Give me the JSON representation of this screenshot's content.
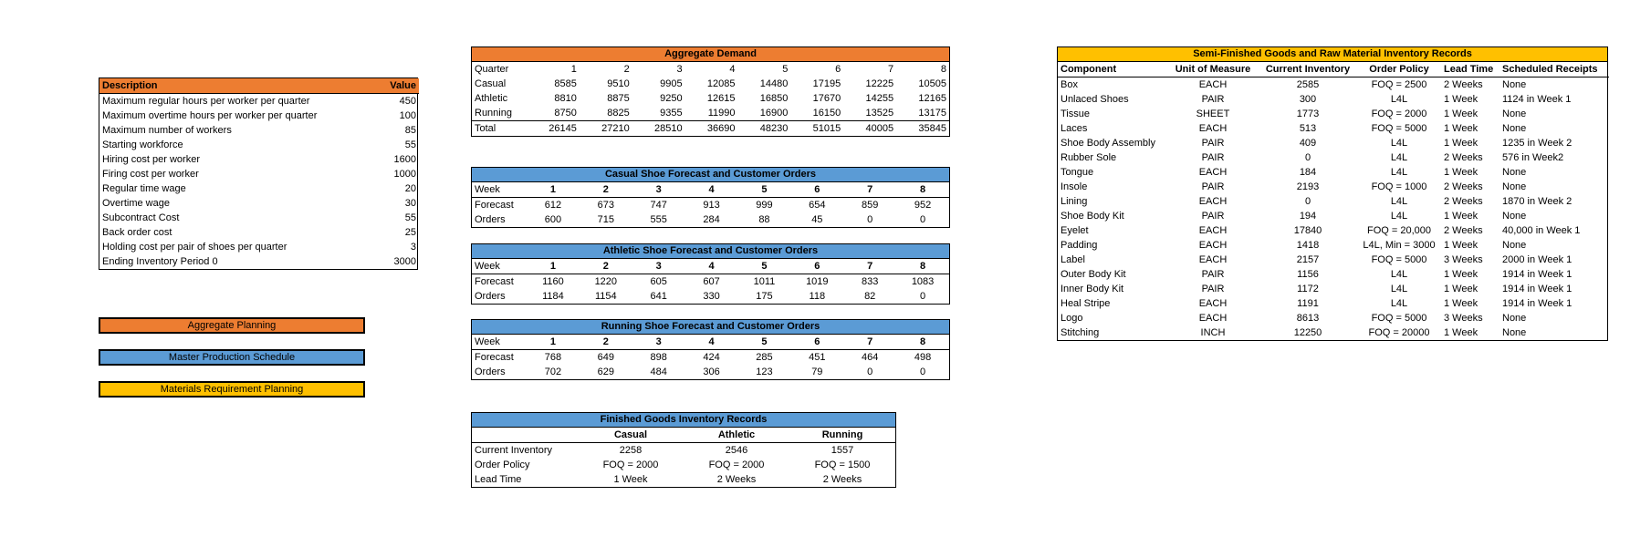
{
  "parameters": {
    "headers": [
      "Description",
      "Value"
    ],
    "rows": [
      [
        "Maximum regular hours per worker per quarter",
        450
      ],
      [
        "Maximum overtime hours per worker per quarter",
        100
      ],
      [
        "Maximum number of workers",
        85
      ],
      [
        "Starting workforce",
        55
      ],
      [
        "Hiring cost per worker",
        1600
      ],
      [
        "Firing cost per worker",
        1000
      ],
      [
        "Regular time wage",
        20
      ],
      [
        "Overtime wage",
        30
      ],
      [
        "Subcontract Cost",
        55
      ],
      [
        "Back order cost",
        25
      ],
      [
        "Holding cost per pair of shoes per quarter",
        3
      ],
      [
        "Ending Inventory Period 0",
        3000
      ]
    ]
  },
  "buttons": [
    "Aggregate Planning",
    "Master Production Schedule",
    "Materials Requirement Planning"
  ],
  "aggregate_demand": {
    "title": "Aggregate Demand",
    "rows": [
      [
        "Quarter",
        1,
        2,
        3,
        4,
        5,
        6,
        7,
        8
      ],
      [
        "Casual",
        8585,
        9510,
        9905,
        12085,
        14480,
        17195,
        12225,
        10505
      ],
      [
        "Athletic",
        8810,
        8875,
        9250,
        12615,
        16850,
        17670,
        14255,
        12165
      ],
      [
        "Running",
        8750,
        8825,
        9355,
        11990,
        16900,
        16150,
        13525,
        13175
      ],
      [
        "Total",
        26145,
        27210,
        28510,
        36690,
        48230,
        51015,
        40005,
        35845
      ]
    ]
  },
  "casual_forecast": {
    "title": "Casual Shoe Forecast and Customer Orders",
    "rows": [
      [
        "Week",
        1,
        2,
        3,
        4,
        5,
        6,
        7,
        8
      ],
      [
        "Forecast",
        612,
        673,
        747,
        913,
        999,
        654,
        859,
        952
      ],
      [
        "Orders",
        600,
        715,
        555,
        284,
        88,
        45,
        0,
        0
      ]
    ]
  },
  "athletic_forecast": {
    "title": "Athletic Shoe Forecast and Customer Orders",
    "rows": [
      [
        "Week",
        1,
        2,
        3,
        4,
        5,
        6,
        7,
        8
      ],
      [
        "Forecast",
        1160,
        1220,
        605,
        607,
        1011,
        1019,
        833,
        1083
      ],
      [
        "Orders",
        1184,
        1154,
        641,
        330,
        175,
        118,
        82,
        0
      ]
    ]
  },
  "running_forecast": {
    "title": "Running Shoe Forecast and Customer Orders",
    "rows": [
      [
        "Week",
        1,
        2,
        3,
        4,
        5,
        6,
        7,
        8
      ],
      [
        "Forecast",
        768,
        649,
        898,
        424,
        285,
        451,
        464,
        498
      ],
      [
        "Orders",
        702,
        629,
        484,
        306,
        123,
        79,
        0,
        0
      ]
    ]
  },
  "finished_goods": {
    "title": "Finished Goods Inventory Records",
    "headers": [
      "Casual",
      "Athletic",
      "Running"
    ],
    "rows": [
      [
        "Current Inventory",
        2258,
        2546,
        1557
      ],
      [
        "Order Policy",
        "FOQ = 2000",
        "FOQ = 2000",
        "FOQ = 1500"
      ],
      [
        "Lead Time",
        "1 Week",
        "2 Weeks",
        "2 Weeks"
      ]
    ]
  },
  "semi_finished": {
    "title": "Semi-Finished Goods and Raw Material Inventory Records",
    "headers": [
      "Component",
      "Unit of Measure",
      "Current Inventory",
      "Order Policy",
      "Lead Time",
      "Scheduled Receipts"
    ],
    "rows": [
      [
        "Box",
        "EACH",
        2585,
        "FOQ = 2500",
        "2 Weeks",
        "None"
      ],
      [
        "Unlaced Shoes",
        "PAIR",
        300,
        "L4L",
        "1 Week",
        "1124 in Week 1"
      ],
      [
        "Tissue",
        "SHEET",
        1773,
        "FOQ = 2000",
        "1 Week",
        "None"
      ],
      [
        "Laces",
        "EACH",
        513,
        "FOQ = 5000",
        "1 Week",
        "None"
      ],
      [
        "Shoe Body Assembly",
        "PAIR",
        409,
        "L4L",
        "1 Week",
        "1235 in Week 2"
      ],
      [
        "Rubber Sole",
        "PAIR",
        0,
        "L4L",
        "2 Weeks",
        "576 in Week2"
      ],
      [
        "Tongue",
        "EACH",
        184,
        "L4L",
        "1 Week",
        "None"
      ],
      [
        "Insole",
        "PAIR",
        2193,
        "FOQ = 1000",
        "2 Weeks",
        "None"
      ],
      [
        "Lining",
        "EACH",
        0,
        "L4L",
        "2 Weeks",
        "1870 in Week 2"
      ],
      [
        "Shoe Body Kit",
        "PAIR",
        194,
        "L4L",
        "1 Week",
        "None"
      ],
      [
        "Eyelet",
        "EACH",
        17840,
        "FOQ = 20,000",
        "2 Weeks",
        "40,000 in Week 1"
      ],
      [
        "Padding",
        "EACH",
        1418,
        "L4L, Min = 3000",
        "1 Week",
        "None"
      ],
      [
        "Label",
        "EACH",
        2157,
        "FOQ = 5000",
        "3 Weeks",
        "2000 in Week 1"
      ],
      [
        "Outer Body Kit",
        "PAIR",
        1156,
        "L4L",
        "1 Week",
        "1914 in Week 1"
      ],
      [
        "Inner Body Kit",
        "PAIR",
        1172,
        "L4L",
        "1 Week",
        "1914 in Week 1"
      ],
      [
        "Heal Stripe",
        "EACH",
        1191,
        "L4L",
        "1 Week",
        "1914 in Week 1"
      ],
      [
        "Logo",
        "EACH",
        8613,
        "FOQ = 5000",
        "3 Weeks",
        "None"
      ],
      [
        "Stitching",
        "INCH",
        12250,
        "FOQ = 20000",
        "1 Week",
        "None"
      ]
    ]
  }
}
